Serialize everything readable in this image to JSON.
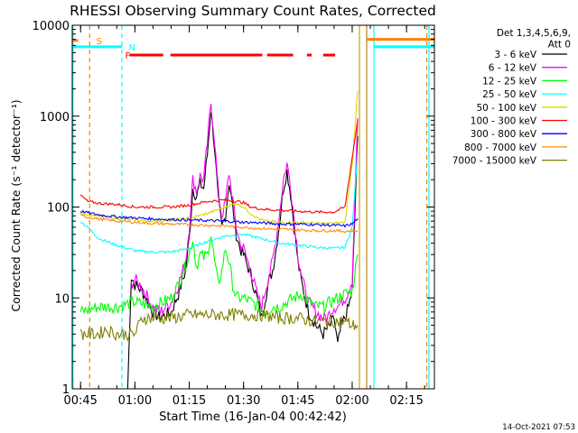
{
  "chart_data": {
    "type": "line",
    "title": "RHESSI Observing Summary Count Rates, Corrected",
    "xlabel": "Start Time (16-Jan-04 00:42:42)",
    "ylabel": "Corrected Count Rate (s⁻¹ detector⁻¹)",
    "footer": "14-Oct-2021 07:53",
    "y_scale": "log",
    "ylim": [
      1,
      10000
    ],
    "xlim": [
      42.7,
      142.7
    ],
    "x_unit": "minutes after 00:00 UT on 16-Jan-04",
    "x_ticks": [
      {
        "v": 45,
        "label": "00:45"
      },
      {
        "v": 60,
        "label": "01:00"
      },
      {
        "v": 75,
        "label": "01:15"
      },
      {
        "v": 90,
        "label": "01:30"
      },
      {
        "v": 105,
        "label": "01:45"
      },
      {
        "v": 120,
        "label": "02:00"
      },
      {
        "v": 135,
        "label": "02:15"
      }
    ],
    "y_ticks": [
      {
        "v": 1,
        "label": "1"
      },
      {
        "v": 10,
        "label": "10"
      },
      {
        "v": 100,
        "label": "100"
      },
      {
        "v": 1000,
        "label": "1000"
      },
      {
        "v": 10000,
        "label": "10000"
      }
    ],
    "legend_header": [
      "Det 1,3,4,5,6,9,",
      "Att 0"
    ],
    "legend_position": "top-right",
    "series": [
      {
        "name": "3 - 6 keV",
        "color": "#000000",
        "x": [
          58,
          59,
          60,
          62,
          63,
          65,
          67,
          70,
          72,
          74,
          75,
          76,
          77,
          78,
          79,
          80,
          81,
          82,
          83,
          84,
          85,
          86,
          87,
          88,
          89,
          90,
          92,
          94,
          95,
          96,
          97,
          98,
          99,
          100,
          101,
          102,
          103,
          104,
          105,
          106,
          107,
          108,
          110,
          112,
          113,
          114,
          115,
          116,
          117,
          118,
          119,
          120,
          121.5
        ],
        "y": [
          1,
          17,
          14,
          12,
          10,
          7,
          6,
          7,
          11,
          20,
          45,
          160,
          130,
          180,
          160,
          380,
          1200,
          450,
          120,
          60,
          80,
          190,
          100,
          50,
          35,
          30,
          18,
          9,
          6,
          10,
          15,
          20,
          35,
          70,
          160,
          250,
          140,
          60,
          25,
          15,
          10,
          7,
          5,
          4,
          4.5,
          5,
          6,
          3,
          5,
          6,
          8,
          12,
          600
        ]
      },
      {
        "name": "6 - 12 keV",
        "color": "#ff00ff",
        "x": [
          59,
          60,
          62,
          63,
          65,
          67,
          70,
          72,
          74,
          75,
          76,
          77,
          78,
          79,
          80,
          81,
          82,
          83,
          84,
          85,
          86,
          87,
          88,
          89,
          90,
          92,
          94,
          95,
          96,
          97,
          98,
          99,
          100,
          101,
          102,
          103,
          104,
          105,
          106,
          107,
          108,
          110,
          112,
          113,
          114,
          115,
          116,
          117,
          118,
          119,
          120,
          121.5
        ],
        "y": [
          14,
          16,
          13,
          11,
          8,
          7,
          9,
          14,
          25,
          60,
          200,
          150,
          220,
          200,
          500,
          1400,
          550,
          150,
          80,
          110,
          240,
          120,
          60,
          40,
          35,
          20,
          10,
          8,
          12,
          18,
          25,
          45,
          90,
          200,
          300,
          170,
          75,
          30,
          18,
          12,
          9,
          7,
          6,
          6,
          7,
          8,
          8,
          9,
          10,
          12,
          16,
          950
        ]
      },
      {
        "name": "12 - 25 keV",
        "color": "#00ff00",
        "x": [
          45,
          50,
          55,
          60,
          65,
          70,
          72,
          75,
          76,
          77,
          78,
          79,
          80,
          81,
          82,
          83,
          84,
          85,
          86,
          87,
          88,
          89,
          90,
          92,
          94,
          96,
          98,
          100,
          102,
          104,
          106,
          108,
          110,
          112,
          114,
          116,
          118,
          120,
          121.5
        ],
        "y": [
          7,
          8,
          8,
          9,
          8,
          10,
          14,
          30,
          45,
          22,
          30,
          28,
          30,
          50,
          25,
          14,
          20,
          35,
          25,
          14,
          10,
          10,
          10,
          9,
          8,
          7,
          8,
          8,
          9,
          10,
          11,
          9,
          8,
          8,
          9,
          10,
          11,
          12,
          30
        ]
      },
      {
        "name": "25 - 50 keV",
        "color": "#00ffff",
        "x": [
          45,
          48,
          50,
          55,
          60,
          65,
          70,
          75,
          80,
          85,
          90,
          95,
          100,
          105,
          110,
          115,
          118,
          120,
          121.5
        ],
        "y": [
          70,
          55,
          45,
          38,
          33,
          32,
          32,
          35,
          42,
          48,
          50,
          45,
          40,
          38,
          36,
          35,
          36,
          60,
          400
        ]
      },
      {
        "name": "50 - 100 keV",
        "color": "#d8d800",
        "x": [
          45,
          50,
          55,
          60,
          65,
          70,
          75,
          80,
          85,
          88,
          90,
          92,
          94,
          96,
          100,
          105,
          110,
          115,
          118,
          120,
          121.5
        ],
        "y": [
          85,
          80,
          75,
          72,
          70,
          72,
          75,
          85,
          100,
          110,
          100,
          85,
          75,
          70,
          68,
          68,
          66,
          66,
          68,
          300,
          1900
        ]
      },
      {
        "name": "100 - 300 keV",
        "color": "#ff0000",
        "x": [
          45,
          47,
          50,
          55,
          60,
          65,
          70,
          75,
          80,
          85,
          90,
          92,
          95,
          100,
          105,
          110,
          115,
          118,
          120,
          121.5
        ],
        "y": [
          135,
          115,
          110,
          107,
          100,
          100,
          100,
          105,
          115,
          120,
          112,
          100,
          95,
          92,
          90,
          88,
          88,
          100,
          350,
          900
        ]
      },
      {
        "name": "300 - 800 keV",
        "color": "#0000ff",
        "x": [
          45,
          50,
          55,
          60,
          65,
          70,
          75,
          80,
          85,
          90,
          95,
          100,
          105,
          110,
          115,
          118,
          120,
          121.5
        ],
        "y": [
          90,
          82,
          78,
          76,
          74,
          73,
          72,
          71,
          70,
          68,
          67,
          65,
          65,
          64,
          63,
          62,
          65,
          75
        ]
      },
      {
        "name": "800 - 7000 keV",
        "color": "#ff8c00",
        "x": [
          45,
          50,
          55,
          60,
          65,
          70,
          75,
          80,
          85,
          90,
          95,
          100,
          105,
          110,
          115,
          118,
          120,
          121.5
        ],
        "y": [
          80,
          74,
          70,
          68,
          66,
          65,
          64,
          63,
          62,
          60,
          58,
          57,
          56,
          55,
          55,
          54,
          55,
          55
        ]
      },
      {
        "name": "7000 - 15000 keV",
        "color": "#808000",
        "x": [
          45,
          50,
          52,
          55,
          60,
          62,
          65,
          70,
          75,
          80,
          85,
          90,
          95,
          100,
          105,
          110,
          115,
          118,
          120,
          121.5
        ],
        "y": [
          4,
          4,
          4.5,
          4,
          4,
          6,
          6,
          6,
          6.5,
          6.5,
          6.5,
          6.5,
          6.5,
          6,
          6,
          5.5,
          5.5,
          5.5,
          5,
          5
        ]
      }
    ],
    "flags": [
      {
        "label": "S",
        "color": "#ff8000",
        "y": 6800,
        "segments": [
          [
            42.7,
            44.3
          ]
        ],
        "marker_x": 47.5,
        "marker_label_x": 49.3
      },
      {
        "label": "N",
        "color": "#00ffff",
        "y": 5800,
        "segments": [
          [
            42.7,
            56.4
          ]
        ],
        "marker_x": 56.4,
        "marker_label_x": 58.3
      },
      {
        "label": "F",
        "color": "#ff0000",
        "y": 4700,
        "segments": [
          [
            58.5,
            67.8
          ],
          [
            69.8,
            95.2
          ],
          [
            96.5,
            103.7
          ],
          [
            107.5,
            108.8
          ],
          [
            112,
            115.3
          ]
        ],
        "label_x": 57.3
      }
    ],
    "right_edge_markers": [
      {
        "color": "#ff8000",
        "x1": 124,
        "x2": 142.7,
        "y": 7000
      },
      {
        "color": "#00ffff",
        "x1": 126,
        "x2": 142.7,
        "y": 5800
      }
    ],
    "vertical_lines": [
      {
        "x": 42.9,
        "color": "#00ffff",
        "dash": false
      },
      {
        "x": 47.5,
        "color": "#ff8000",
        "dash": true
      },
      {
        "x": 56.4,
        "color": "#00ffff",
        "dash": true
      },
      {
        "x": 122,
        "color": "#d0a000",
        "dash": false
      },
      {
        "x": 124,
        "color": "#b8860b",
        "dash": false
      },
      {
        "x": 126,
        "color": "#00ffff",
        "dash": false
      },
      {
        "x": 140.6,
        "color": "#ff8000",
        "dash": true
      },
      {
        "x": 141.2,
        "color": "#00ffff",
        "dash": false
      }
    ]
  }
}
